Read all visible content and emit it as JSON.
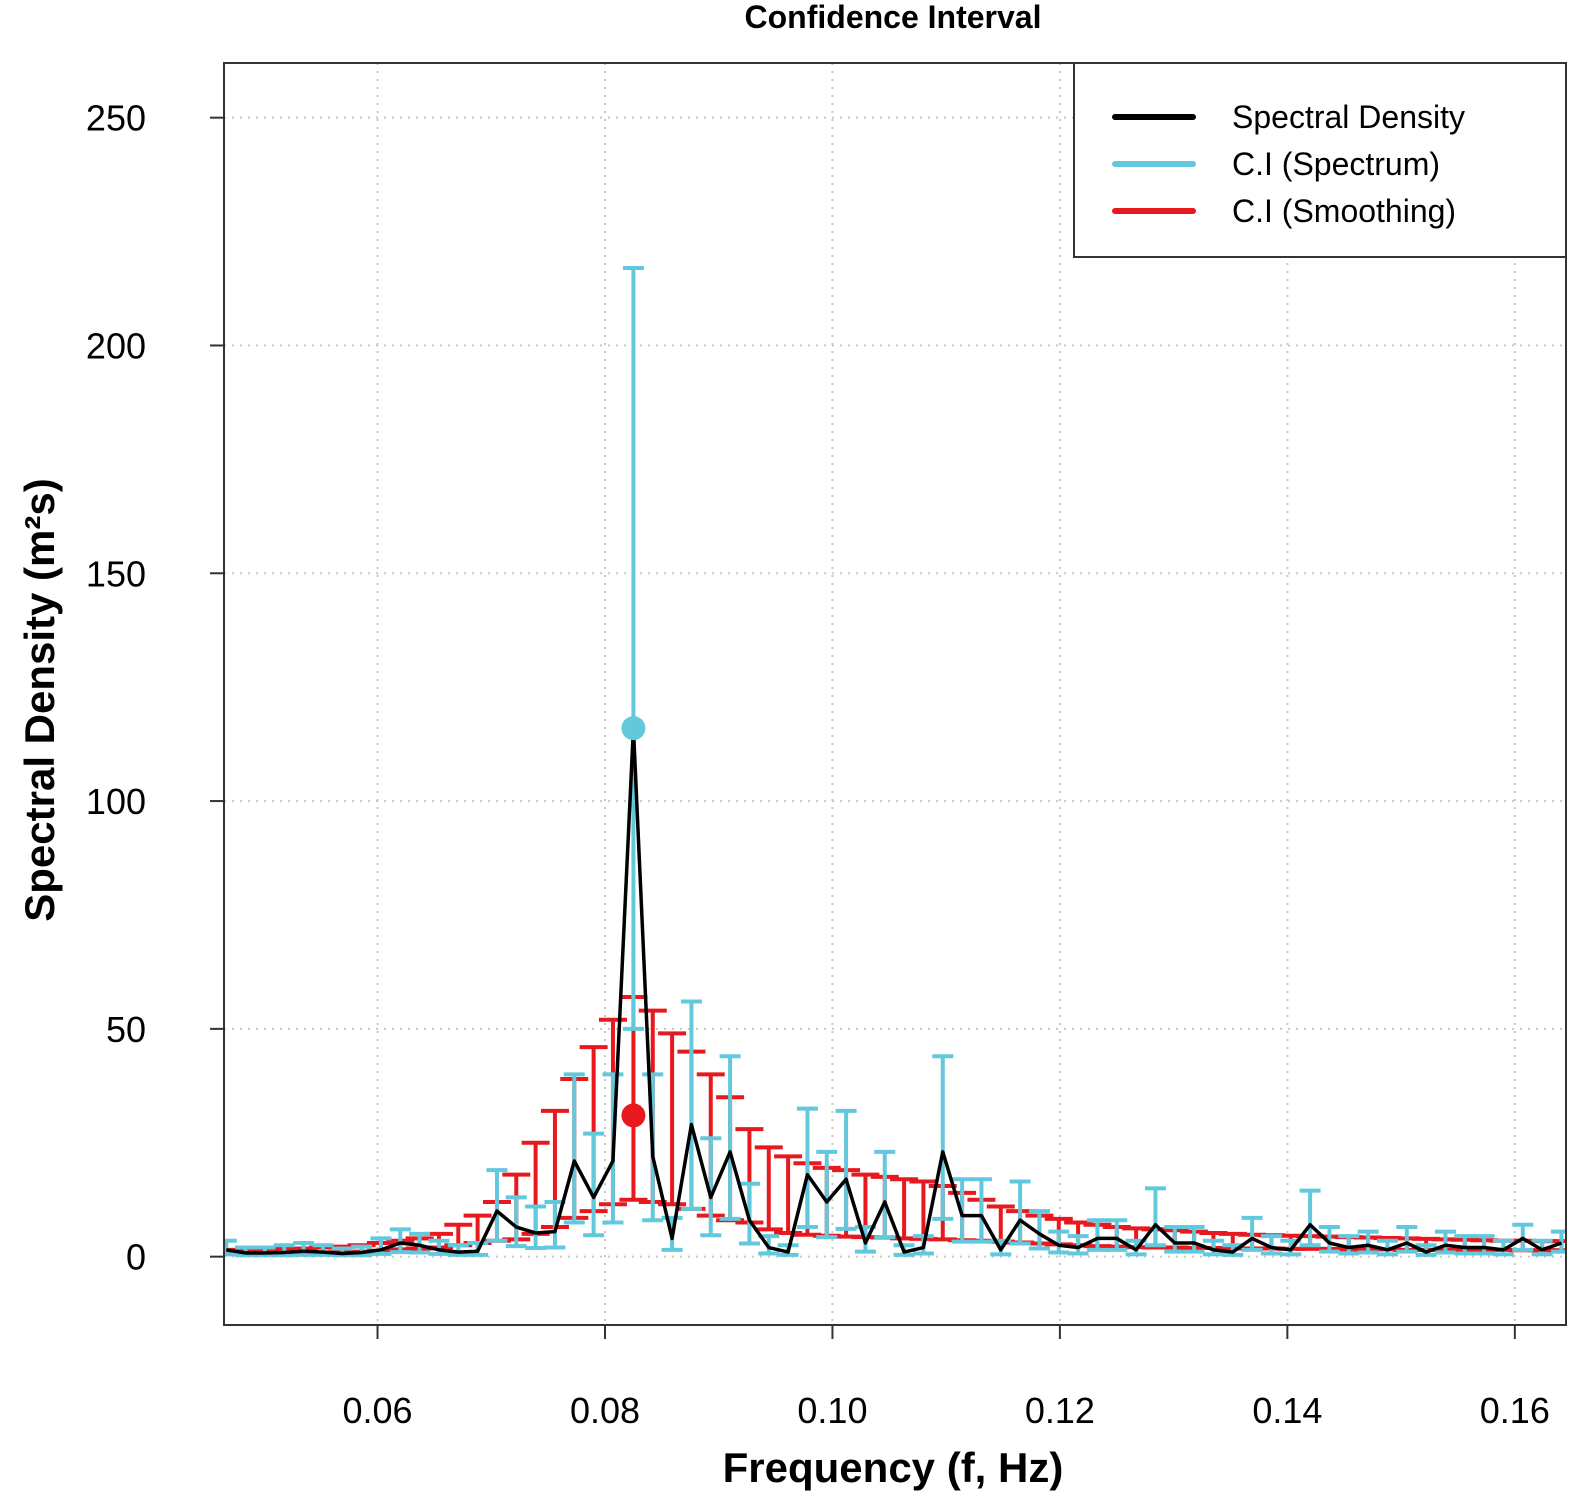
{
  "chart_data": {
    "type": "line",
    "title": "Confidence Interval",
    "xlabel": "Frequency (f, Hz)",
    "ylabel": "Spectral Density",
    "ylabel_unit": "(m²s)",
    "xlim": [
      0.0465,
      0.1645
    ],
    "ylim": [
      -15,
      262
    ],
    "xticks": [
      0.06,
      0.08,
      0.1,
      0.12,
      0.14,
      0.16
    ],
    "xtick_labels": [
      "0.06",
      "0.08",
      "0.10",
      "0.12",
      "0.14",
      "0.16"
    ],
    "yticks": [
      0,
      50,
      100,
      150,
      200,
      250
    ],
    "ytick_labels": [
      "0",
      "50",
      "100",
      "150",
      "200",
      "250"
    ],
    "grid": true,
    "legend_position": "top-right",
    "legend": [
      {
        "label": "Spectral Density",
        "color": "#000000"
      },
      {
        "label": "C.I (Spectrum)",
        "color": "#62c8dc"
      },
      {
        "label": "C.I (Smoothing)",
        "color": "#e8191e"
      }
    ],
    "colors": {
      "spectrum": "#000000",
      "ci_spectrum": "#62c8dc",
      "ci_smoothing": "#e8191e"
    },
    "x": [
      0.0467,
      0.0484,
      0.0501,
      0.0518,
      0.0535,
      0.0552,
      0.0569,
      0.0586,
      0.0603,
      0.062,
      0.0637,
      0.0654,
      0.0671,
      0.0688,
      0.0705,
      0.0722,
      0.0739,
      0.0756,
      0.0773,
      0.079,
      0.0807,
      0.0825,
      0.0842,
      0.0859,
      0.0876,
      0.0893,
      0.091,
      0.0927,
      0.0944,
      0.0961,
      0.0978,
      0.0995,
      0.1012,
      0.1029,
      0.1046,
      0.1063,
      0.108,
      0.1097,
      0.1114,
      0.1131,
      0.1148,
      0.1165,
      0.1182,
      0.1199,
      0.1216,
      0.1233,
      0.125,
      0.1267,
      0.1284,
      0.1301,
      0.1318,
      0.1335,
      0.1352,
      0.1369,
      0.1386,
      0.1403,
      0.142,
      0.1437,
      0.1454,
      0.1471,
      0.1488,
      0.1505,
      0.1522,
      0.1539,
      0.1556,
      0.1573,
      0.159,
      0.1607,
      0.1624,
      0.1641
    ],
    "series": [
      {
        "name": "Spectral Density",
        "values": [
          1.5,
          0.8,
          0.8,
          0.9,
          1.2,
          1.0,
          0.7,
          0.9,
          1.5,
          3.0,
          2.5,
          1.5,
          1.0,
          1.2,
          10.0,
          6.5,
          5.2,
          5.5,
          21.0,
          13.0,
          21.0,
          116.0,
          22.0,
          4.0,
          29.0,
          13.0,
          23.0,
          8.0,
          2.0,
          1.0,
          18.0,
          12.0,
          17.0,
          3.0,
          12.0,
          1.0,
          2.0,
          23.0,
          9.0,
          9.0,
          1.5,
          8.0,
          5.0,
          2.5,
          2.0,
          4.0,
          4.0,
          1.5,
          7.0,
          3.0,
          3.0,
          1.5,
          1.0,
          4.0,
          2.0,
          1.5,
          7.0,
          3.0,
          2.0,
          2.5,
          1.5,
          3.0,
          1.0,
          2.5,
          2.0,
          2.0,
          1.5,
          4.0,
          1.5,
          3.0
        ]
      },
      {
        "name": "C.I (Spectrum) lower",
        "values": [
          0.5,
          0.3,
          0.3,
          0.3,
          0.4,
          0.4,
          0.3,
          0.3,
          0.6,
          1.0,
          0.9,
          0.6,
          0.4,
          0.4,
          3.5,
          2.3,
          1.9,
          2.0,
          7.5,
          4.7,
          7.5,
          50.0,
          8.0,
          1.5,
          10.5,
          4.7,
          8.3,
          2.9,
          0.7,
          0.4,
          6.5,
          4.3,
          6.1,
          1.1,
          4.3,
          0.4,
          0.7,
          8.3,
          3.3,
          3.3,
          0.5,
          2.9,
          1.8,
          0.9,
          0.7,
          1.5,
          1.5,
          0.5,
          2.5,
          1.1,
          1.1,
          0.5,
          0.4,
          1.5,
          0.7,
          0.5,
          2.5,
          1.1,
          0.7,
          0.9,
          0.5,
          1.1,
          0.4,
          0.9,
          0.7,
          0.7,
          0.5,
          1.5,
          0.5,
          1.1
        ]
      },
      {
        "name": "C.I (Spectrum) upper",
        "values": [
          3.5,
          2.0,
          2.0,
          2.5,
          3.0,
          2.5,
          1.8,
          2.2,
          4.0,
          6.0,
          5.0,
          3.5,
          2.5,
          3.0,
          19.0,
          13.0,
          11.0,
          12.0,
          40.0,
          27.0,
          40.0,
          217.0,
          40.0,
          8.5,
          56.0,
          26.0,
          44.0,
          16.0,
          4.5,
          2.5,
          32.5,
          23.0,
          32.0,
          6.5,
          23.0,
          2.5,
          4.5,
          44.0,
          17.0,
          17.0,
          3.5,
          16.5,
          10.0,
          5.5,
          4.5,
          8.0,
          8.0,
          3.5,
          15.0,
          6.5,
          6.5,
          3.5,
          2.5,
          8.5,
          4.5,
          3.5,
          14.5,
          6.5,
          4.5,
          5.5,
          3.5,
          6.5,
          2.5,
          5.5,
          4.5,
          4.5,
          3.5,
          7.0,
          3.5,
          5.5
        ]
      },
      {
        "name": "C.I (Smoothing) lower",
        "values": [
          0.7,
          0.7,
          0.7,
          0.8,
          0.8,
          0.9,
          1.0,
          1.1,
          1.3,
          1.6,
          1.8,
          2.0,
          2.5,
          3.0,
          3.5,
          3.8,
          5.0,
          6.5,
          8.5,
          10.0,
          11.5,
          12.5,
          12.0,
          11.5,
          10.5,
          9.0,
          8.0,
          7.5,
          6.0,
          5.2,
          4.8,
          4.6,
          4.4,
          4.3,
          4.2,
          4.0,
          3.9,
          3.8,
          3.6,
          3.5,
          3.3,
          3.1,
          2.9,
          2.7,
          2.5,
          2.3,
          2.2,
          2.1,
          2.0,
          2.0,
          1.9,
          1.9,
          1.8,
          1.8,
          1.8,
          1.7,
          1.7,
          1.7,
          1.6,
          1.6,
          1.6,
          1.5,
          1.5,
          1.5,
          1.5,
          1.5,
          1.5,
          1.4,
          1.4,
          1.4
        ]
      },
      {
        "name": "C.I (Smoothing) upper",
        "values": [
          1.5,
          1.5,
          1.5,
          1.7,
          1.8,
          2.0,
          2.2,
          2.5,
          3.0,
          3.5,
          4.0,
          5.0,
          7.0,
          9.0,
          12.0,
          18.0,
          25.0,
          32.0,
          39.0,
          46.0,
          52.0,
          57.0,
          54.0,
          49.0,
          45.0,
          40.0,
          35.0,
          28.0,
          24.0,
          22.0,
          20.5,
          19.5,
          19.0,
          18.0,
          17.5,
          17.0,
          16.5,
          15.5,
          14.0,
          12.5,
          11.0,
          10.0,
          9.0,
          8.3,
          7.5,
          7.0,
          6.5,
          6.2,
          6.0,
          5.8,
          5.5,
          5.2,
          5.0,
          4.8,
          4.7,
          4.6,
          4.5,
          4.4,
          4.3,
          4.2,
          4.1,
          4.0,
          3.9,
          3.8,
          3.7,
          3.6,
          3.5,
          3.5,
          3.4,
          3.4
        ]
      }
    ],
    "highlight_points": [
      {
        "name": "peak-spectrum",
        "x": 0.0825,
        "y": 116,
        "color": "#62c8dc"
      },
      {
        "name": "peak-smoothing",
        "x": 0.0825,
        "y": 31,
        "color": "#e8191e"
      }
    ]
  }
}
